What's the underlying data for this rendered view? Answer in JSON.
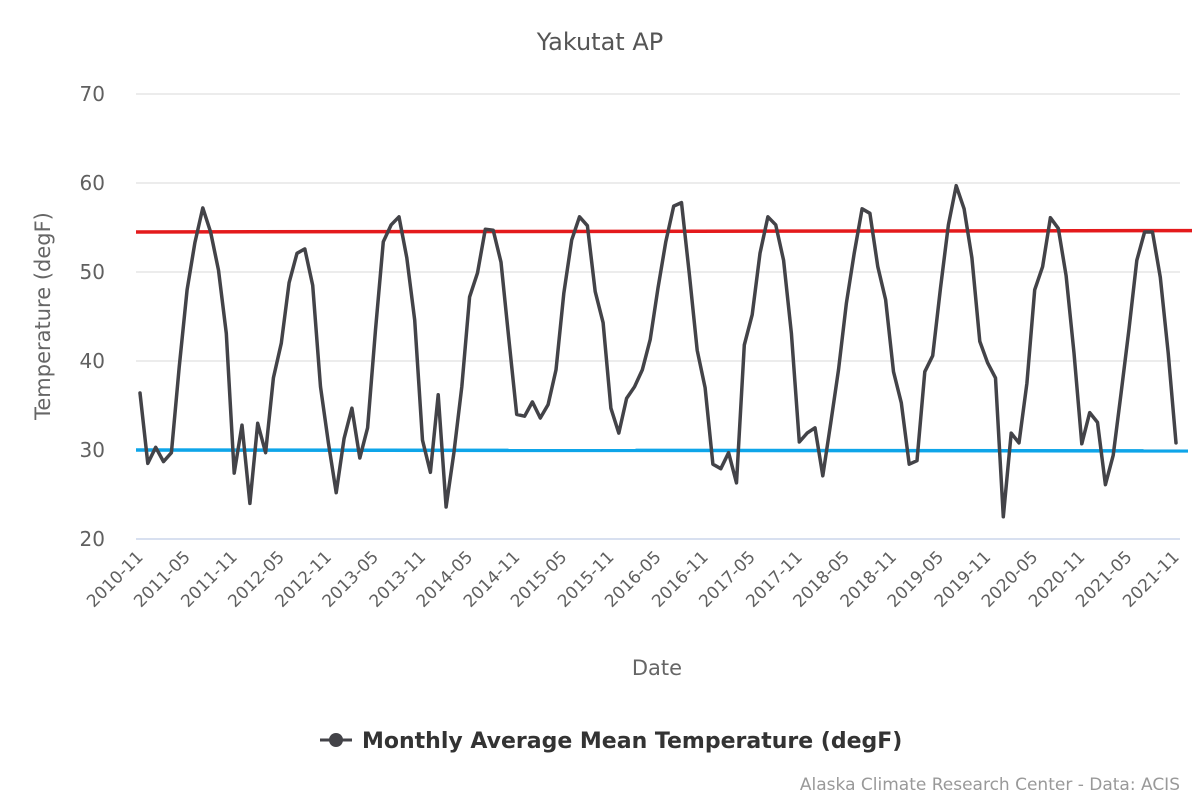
{
  "chart_data": {
    "type": "line",
    "title": "Yakutat AP",
    "xlabel": "Date",
    "ylabel": "Temperature (degF)",
    "ylim": [
      20,
      70
    ],
    "yticks": [
      "20",
      "30",
      "40",
      "50",
      "60",
      "70"
    ],
    "ytick_values": [
      20,
      30,
      40,
      50,
      60,
      70
    ],
    "grid": true,
    "legend_position": "bottom-center",
    "xtick_labels": [
      "2010-11",
      "2011-05",
      "2011-11",
      "2012-05",
      "2012-11",
      "2013-05",
      "2013-11",
      "2014-05",
      "2014-11",
      "2015-05",
      "2015-11",
      "2016-05",
      "2016-11",
      "2017-05",
      "2017-11",
      "2018-05",
      "2018-11",
      "2019-05",
      "2019-11",
      "2020-05",
      "2020-11",
      "2021-05",
      "2021-11"
    ],
    "x_start": "2010-11",
    "x_step_months": 1,
    "series": [
      {
        "name": "Monthly Average Mean Temperature (degF)",
        "color": "#434348",
        "values": [
          36.4,
          28.5,
          30.3,
          28.7,
          29.7,
          39.3,
          48.0,
          53.3,
          57.2,
          54.5,
          50.2,
          43.1,
          27.4,
          32.8,
          24.0,
          33.0,
          29.7,
          38.1,
          42.0,
          48.8,
          52.1,
          52.6,
          48.5,
          37.1,
          30.8,
          25.2,
          31.3,
          34.7,
          29.1,
          32.5,
          43.5,
          53.4,
          55.3,
          56.2,
          51.6,
          44.6,
          31.1,
          27.5,
          36.2,
          23.6,
          29.7,
          37.1,
          47.2,
          49.9,
          54.8,
          54.7,
          51.1,
          42.4,
          34.0,
          33.8,
          35.4,
          33.6,
          35.1,
          39.0,
          47.6,
          53.6,
          56.2,
          55.2,
          47.8,
          44.3,
          34.7,
          31.9,
          35.8,
          37.1,
          39.0,
          42.4,
          48.2,
          53.4,
          57.4,
          57.8,
          49.7,
          41.2,
          37.0,
          28.4,
          27.9,
          29.7,
          26.3,
          41.8,
          45.2,
          52.1,
          56.2,
          55.3,
          51.3,
          43.1,
          30.9,
          31.9,
          32.5,
          27.1,
          33.0,
          39.0,
          46.5,
          52.1,
          57.1,
          56.6,
          50.6,
          46.9,
          38.8,
          35.3,
          28.4,
          28.8,
          38.8,
          40.6,
          48.2,
          55.3,
          59.7,
          57.1,
          51.6,
          42.2,
          39.8,
          38.1,
          22.5,
          31.9,
          30.8,
          37.5,
          48.0,
          50.6,
          56.1,
          54.9,
          49.6,
          40.9,
          30.7,
          34.2,
          33.1,
          26.1,
          29.4,
          36.4,
          43.5,
          51.3,
          54.5,
          54.5,
          49.4,
          40.9,
          30.8
        ]
      }
    ],
    "reference_lines": [
      {
        "name": "upper-reference-line",
        "color": "#e41a1c",
        "start_value": 54.5,
        "end_value": 54.65
      },
      {
        "name": "lower-reference-line",
        "color": "#0ea5e9",
        "start_value": 30.0,
        "end_value": 29.9
      }
    ],
    "credits": "Alaska Climate Research Center - Data: ACIS"
  }
}
